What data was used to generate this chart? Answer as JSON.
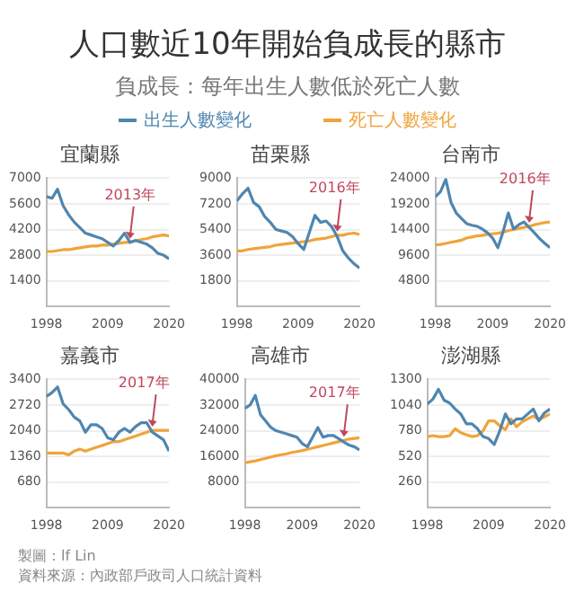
{
  "chart_data": [
    {
      "type": "other",
      "title": "人口數近10年開始負成長的縣市",
      "subtitle": "負成長：每年出生人數低於死亡人數",
      "annotations": [
        "製圖：lf Lin",
        "資料來源：內政部戶政司人口統計資料"
      ]
    },
    {
      "type": "line",
      "title": "宜蘭縣",
      "legend": "top",
      "grid": "y",
      "xlim": [
        1998,
        2020
      ],
      "xticks": [
        1998,
        2009,
        2020
      ],
      "ylim": [
        0,
        7000
      ],
      "yticks": [
        1400,
        2800,
        4200,
        5600,
        7000
      ],
      "x": [
        1998,
        1999,
        2000,
        2001,
        2002,
        2003,
        2004,
        2005,
        2006,
        2007,
        2008,
        2009,
        2010,
        2011,
        2012,
        2013,
        2014,
        2015,
        2016,
        2017,
        2018,
        2019,
        2020
      ],
      "series": [
        {
          "name": "出生人數變化",
          "color": "#4f86b0",
          "values": [
            6000,
            5900,
            6400,
            5500,
            5000,
            4600,
            4300,
            4000,
            3900,
            3800,
            3700,
            3500,
            3300,
            3600,
            4000,
            3500,
            3600,
            3500,
            3400,
            3200,
            2900,
            2800,
            2600
          ]
        },
        {
          "name": "死亡人數變化",
          "color": "#f0a43a",
          "values": [
            3000,
            3000,
            3050,
            3100,
            3100,
            3150,
            3200,
            3250,
            3300,
            3300,
            3350,
            3350,
            3400,
            3450,
            3500,
            3500,
            3600,
            3650,
            3700,
            3800,
            3850,
            3900,
            3850
          ]
        }
      ],
      "annotations": [
        {
          "text": "2013年",
          "x": 2013,
          "y": 3500
        }
      ]
    },
    {
      "type": "line",
      "title": "苗栗縣",
      "grid": "y",
      "xlim": [
        1998,
        2020
      ],
      "xticks": [
        1998,
        2009,
        2020
      ],
      "ylim": [
        0,
        9000
      ],
      "yticks": [
        1800,
        3600,
        5400,
        7200,
        9000
      ],
      "x": [
        1998,
        1999,
        2000,
        2001,
        2002,
        2003,
        2004,
        2005,
        2006,
        2007,
        2008,
        2009,
        2010,
        2011,
        2012,
        2013,
        2014,
        2015,
        2016,
        2017,
        2018,
        2019,
        2020
      ],
      "series": [
        {
          "color": "#4f86b0",
          "values": [
            7400,
            7900,
            8300,
            7300,
            7000,
            6300,
            5900,
            5400,
            5300,
            5200,
            4900,
            4400,
            4000,
            5200,
            6400,
            5900,
            6000,
            5600,
            4900,
            3900,
            3400,
            3000,
            2700
          ]
        },
        {
          "color": "#f0a43a",
          "values": [
            3900,
            3900,
            4000,
            4050,
            4100,
            4150,
            4200,
            4300,
            4350,
            4400,
            4450,
            4500,
            4550,
            4600,
            4700,
            4750,
            4800,
            4900,
            5000,
            5000,
            5100,
            5150,
            5050
          ]
        }
      ],
      "annotations": [
        {
          "text": "2016年",
          "x": 2016,
          "y": 5000
        }
      ]
    },
    {
      "type": "line",
      "title": "台南市",
      "grid": "y",
      "xlim": [
        1998,
        2020
      ],
      "xticks": [
        1998,
        2009,
        2020
      ],
      "ylim": [
        0,
        24000
      ],
      "yticks": [
        4800,
        9600,
        14400,
        19200,
        24000
      ],
      "x": [
        1998,
        1999,
        2000,
        2001,
        2002,
        2003,
        2004,
        2005,
        2006,
        2007,
        2008,
        2009,
        2010,
        2011,
        2012,
        2013,
        2014,
        2015,
        2016,
        2017,
        2018,
        2019,
        2020
      ],
      "series": [
        {
          "color": "#4f86b0",
          "values": [
            20500,
            21500,
            23800,
            19500,
            17500,
            16500,
            15500,
            15200,
            15000,
            14500,
            13800,
            12800,
            11000,
            14000,
            17500,
            14500,
            15300,
            15800,
            14800,
            13800,
            12700,
            11800,
            11000
          ]
        },
        {
          "color": "#f0a43a",
          "values": [
            11500,
            11600,
            11800,
            12000,
            12200,
            12400,
            12800,
            13000,
            13200,
            13300,
            13500,
            13600,
            13700,
            13900,
            14200,
            14400,
            14600,
            14800,
            15000,
            15300,
            15500,
            15700,
            15800
          ]
        }
      ],
      "annotations": [
        {
          "text": "2016年",
          "x": 2016,
          "y": 15000
        }
      ]
    },
    {
      "type": "line",
      "title": "嘉義市",
      "grid": "y",
      "xlim": [
        1998,
        2020
      ],
      "xticks": [
        1998,
        2009,
        2020
      ],
      "ylim": [
        0,
        3400
      ],
      "yticks": [
        680,
        1360,
        2040,
        2720,
        3400
      ],
      "x": [
        1998,
        1999,
        2000,
        2001,
        2002,
        2003,
        2004,
        2005,
        2006,
        2007,
        2008,
        2009,
        2010,
        2011,
        2012,
        2013,
        2014,
        2015,
        2016,
        2017,
        2018,
        2019,
        2020
      ],
      "series": [
        {
          "color": "#4f86b0",
          "values": [
            2950,
            3050,
            3200,
            2750,
            2600,
            2400,
            2300,
            2000,
            2200,
            2200,
            2100,
            1850,
            1800,
            2000,
            2100,
            2000,
            2150,
            2250,
            2250,
            2000,
            1900,
            1800,
            1500
          ]
        },
        {
          "color": "#f0a43a",
          "values": [
            1450,
            1450,
            1450,
            1450,
            1400,
            1500,
            1550,
            1500,
            1550,
            1600,
            1650,
            1700,
            1750,
            1750,
            1800,
            1850,
            1900,
            1950,
            2000,
            2050,
            2050,
            2050,
            2050
          ]
        }
      ],
      "annotations": [
        {
          "text": "2017年",
          "x": 2017,
          "y": 2050
        }
      ]
    },
    {
      "type": "line",
      "title": "高雄市",
      "grid": "y",
      "xlim": [
        1998,
        2020
      ],
      "xticks": [
        1998,
        2009,
        2020
      ],
      "ylim": [
        0,
        40000
      ],
      "yticks": [
        8000,
        16000,
        24000,
        32000,
        40000
      ],
      "x": [
        1998,
        1999,
        2000,
        2001,
        2002,
        2003,
        2004,
        2005,
        2006,
        2007,
        2008,
        2009,
        2010,
        2011,
        2012,
        2013,
        2014,
        2015,
        2016,
        2017,
        2018,
        2019,
        2020
      ],
      "series": [
        {
          "color": "#4f86b0",
          "values": [
            31000,
            32000,
            35000,
            29000,
            27000,
            25000,
            24000,
            23500,
            23000,
            22500,
            22000,
            20000,
            19000,
            22000,
            25000,
            22000,
            22500,
            22500,
            21500,
            20500,
            19500,
            19000,
            18000
          ]
        },
        {
          "color": "#f0a43a",
          "values": [
            14000,
            14300,
            14600,
            15000,
            15400,
            15800,
            16200,
            16500,
            16800,
            17200,
            17500,
            17800,
            18200,
            18600,
            19000,
            19400,
            19800,
            20200,
            20600,
            21000,
            21400,
            21600,
            21800
          ]
        }
      ],
      "annotations": [
        {
          "text": "2017年",
          "x": 2017,
          "y": 21000
        }
      ]
    },
    {
      "type": "line",
      "title": "澎湖縣",
      "grid": "y",
      "xlim": [
        1998,
        2020
      ],
      "xticks": [
        1998,
        2009,
        2020
      ],
      "ylim": [
        0,
        1300
      ],
      "yticks": [
        260,
        520,
        780,
        1040,
        1300
      ],
      "x": [
        1998,
        1999,
        2000,
        2001,
        2002,
        2003,
        2004,
        2005,
        2006,
        2007,
        2008,
        2009,
        2010,
        2011,
        2012,
        2013,
        2014,
        2015,
        2016,
        2017,
        2018,
        2019,
        2020
      ],
      "series": [
        {
          "color": "#4f86b0",
          "values": [
            1050,
            1100,
            1200,
            1090,
            1060,
            1000,
            950,
            850,
            850,
            800,
            720,
            700,
            640,
            780,
            950,
            850,
            900,
            900,
            950,
            1000,
            880,
            960,
            1000
          ]
        },
        {
          "color": "#f0a43a",
          "values": [
            720,
            730,
            720,
            720,
            730,
            800,
            760,
            740,
            720,
            730,
            780,
            880,
            880,
            830,
            790,
            900,
            820,
            870,
            900,
            930,
            890,
            920,
            950
          ]
        }
      ]
    }
  ]
}
